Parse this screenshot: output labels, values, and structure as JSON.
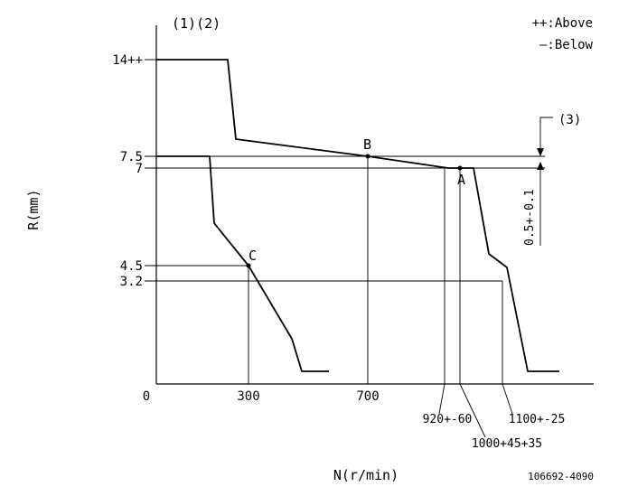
{
  "header": {
    "left": "(1)(2)",
    "note": "(3)"
  },
  "legend": {
    "above": "++:Above",
    "below": "—:Below"
  },
  "footer": {
    "code": "106692-4090"
  },
  "chart_data": {
    "type": "line",
    "xlabel": "N(r/min)",
    "ylabel": "R(mm)",
    "x_ticks": [
      "0",
      "300",
      "700"
    ],
    "y_ticks": [
      "14++",
      "7.5",
      "7",
      "4.5",
      "3.2"
    ],
    "x_bottom_labels": [
      "920+-60",
      "1000+45+35",
      "1100+-25"
    ],
    "side_dimension": "0.5+-0.1",
    "points": [
      {
        "name": "A",
        "x": 1000,
        "y": 7
      },
      {
        "name": "B",
        "x": 700,
        "y": 7.5
      },
      {
        "name": "C",
        "x": 300,
        "y": 4.5
      }
    ],
    "series": [
      {
        "x": [
          0,
          240,
          265,
          700,
          975,
          1030,
          1080,
          1120,
          1165,
          1190,
          1350
        ],
        "y": [
          14,
          14,
          10.5,
          7.5,
          7,
          7,
          4.7,
          3.6,
          1.8,
          0.5,
          0.5
        ]
      },
      {
        "x": [
          0,
          175,
          195,
          300,
          455,
          490,
          585
        ],
        "y": [
          7.5,
          7.5,
          5.8,
          4.5,
          1.5,
          0.5,
          0.5
        ]
      }
    ],
    "guides": {
      "horizontal": [
        7.5,
        7,
        4.5,
        3.2
      ],
      "vertical": [
        300,
        700,
        920,
        1000,
        1100
      ]
    }
  }
}
